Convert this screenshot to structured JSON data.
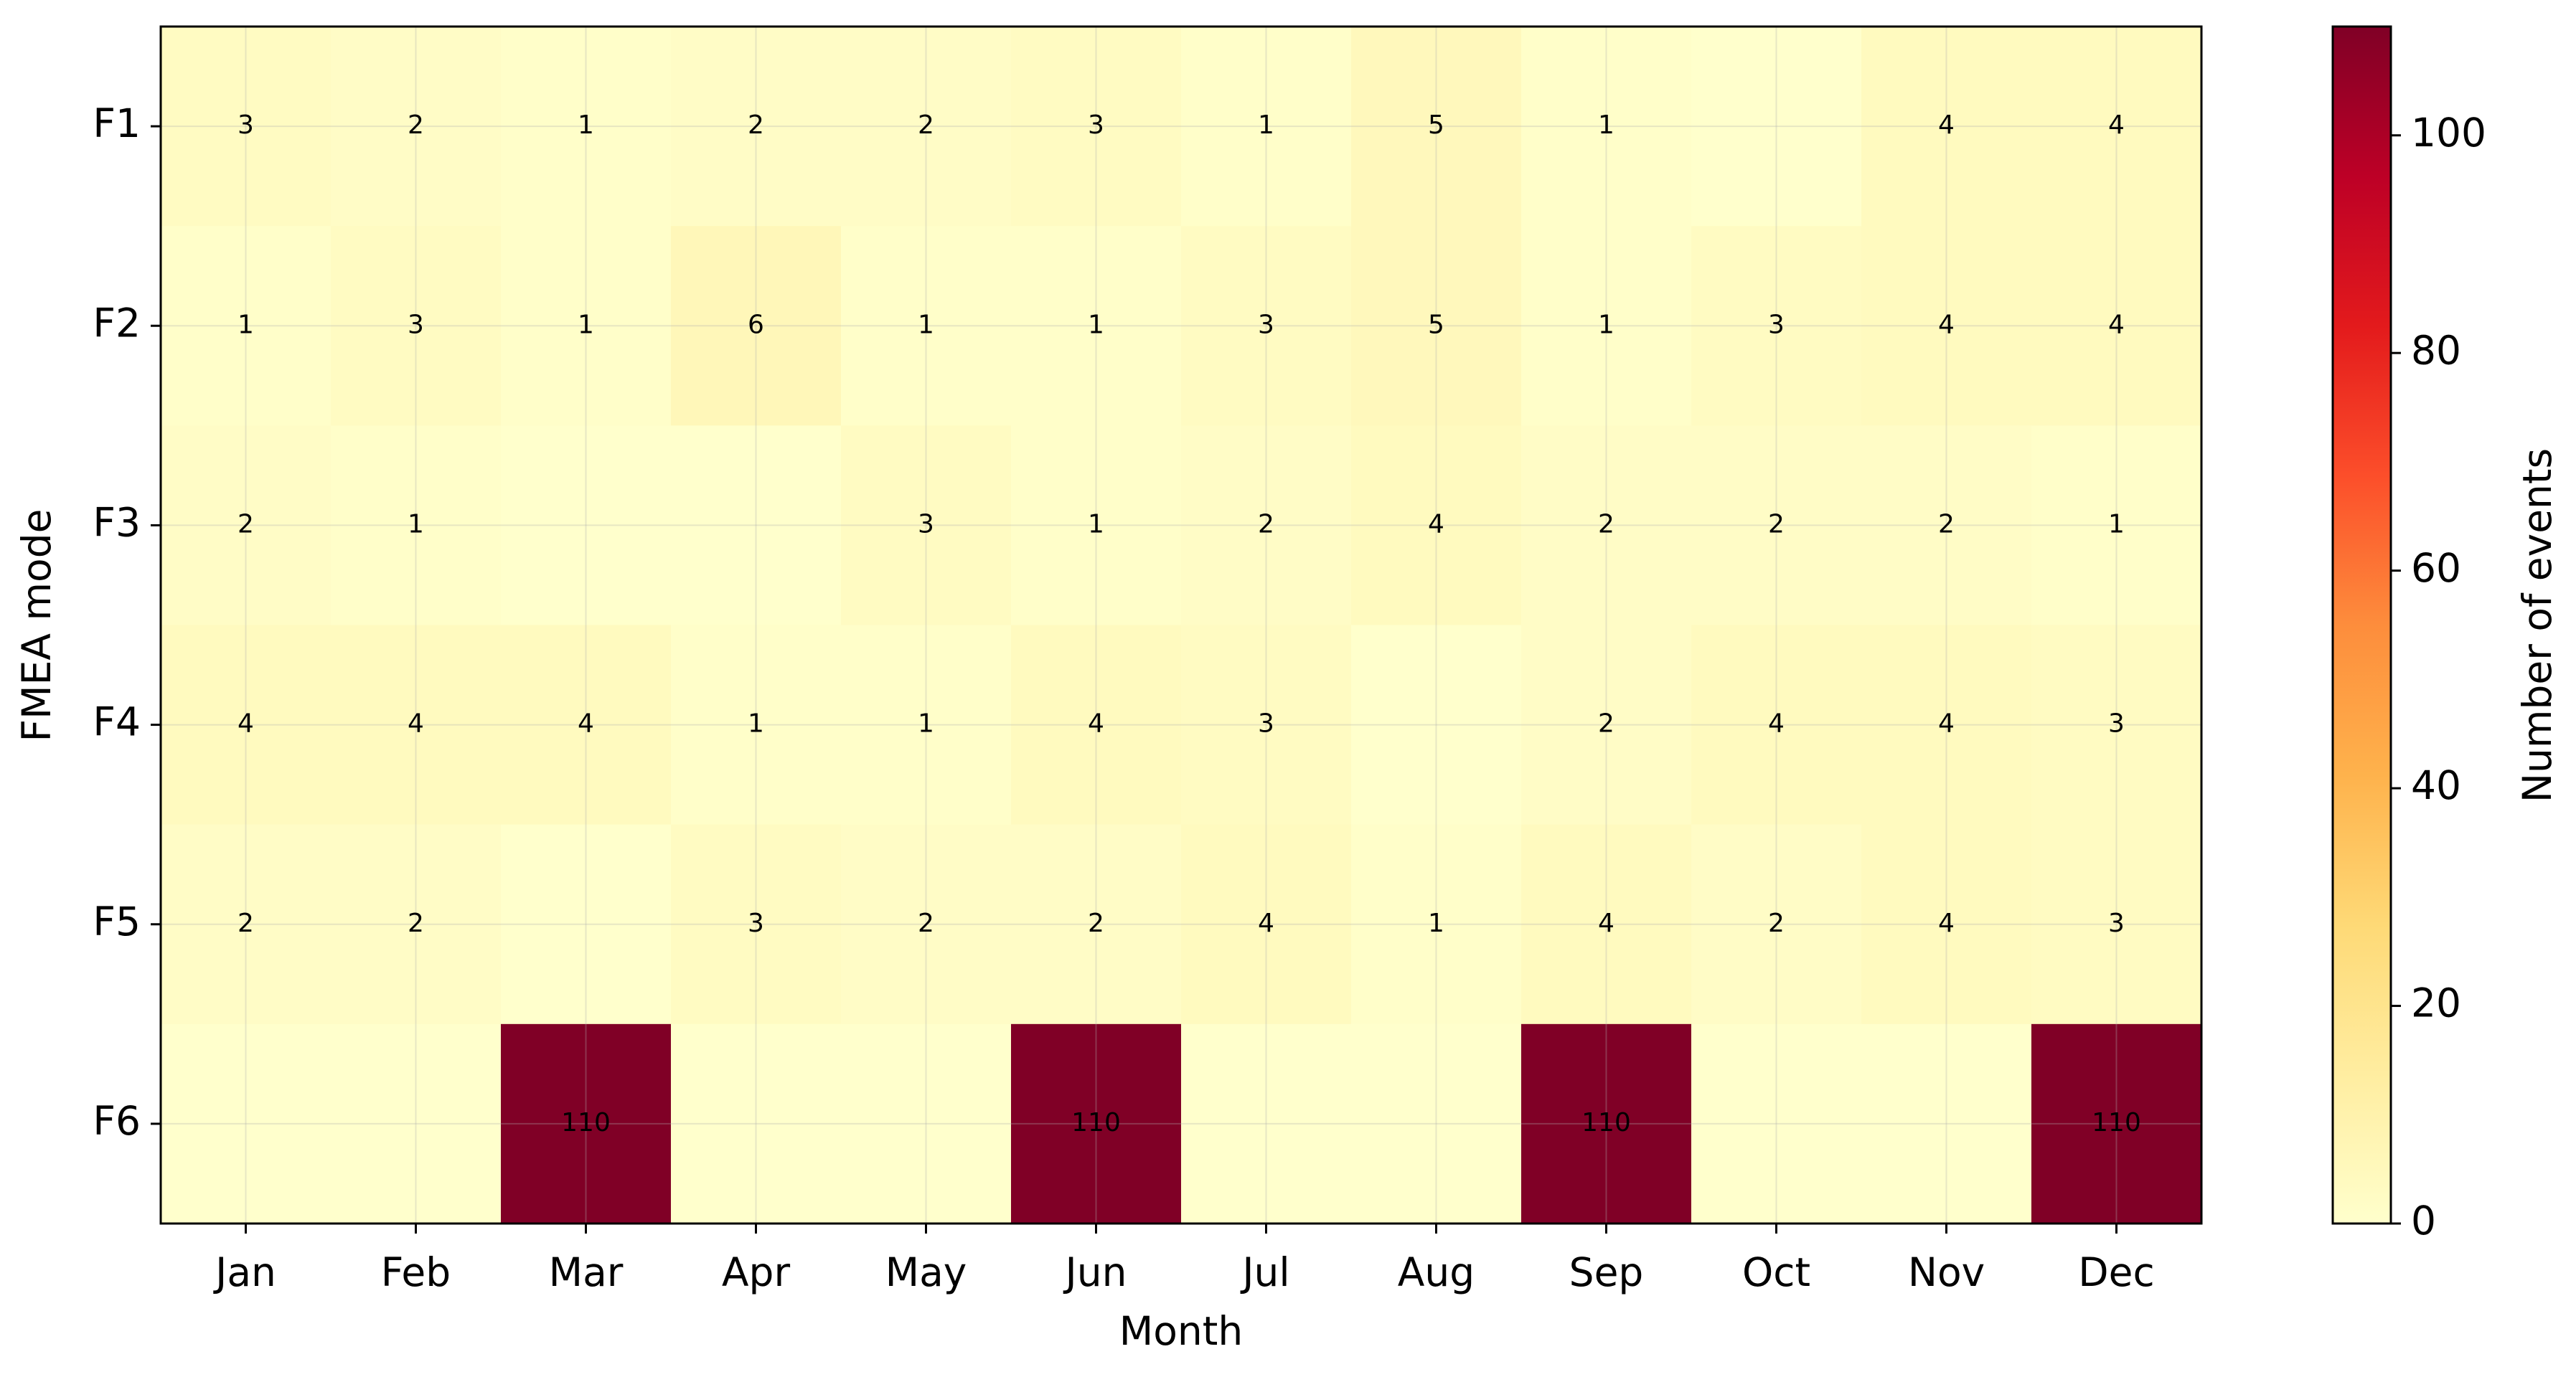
{
  "chart_data": {
    "type": "heatmap",
    "x_label": "Month",
    "y_label": "FMEA mode",
    "colorbar_label": "Number of events",
    "categories": [
      "Jan",
      "Feb",
      "Mar",
      "Apr",
      "May",
      "Jun",
      "Jul",
      "Aug",
      "Sep",
      "Oct",
      "Nov",
      "Dec"
    ],
    "rows": [
      "F1",
      "F2",
      "F3",
      "F4",
      "F5",
      "F6"
    ],
    "values": [
      [
        3,
        2,
        1,
        2,
        2,
        3,
        1,
        5,
        1,
        0,
        4,
        4
      ],
      [
        1,
        3,
        1,
        6,
        1,
        1,
        3,
        5,
        1,
        3,
        4,
        4
      ],
      [
        2,
        1,
        0,
        0,
        3,
        1,
        2,
        4,
        2,
        2,
        2,
        1
      ],
      [
        4,
        4,
        4,
        1,
        1,
        4,
        3,
        0,
        2,
        4,
        4,
        3
      ],
      [
        2,
        2,
        0,
        3,
        2,
        2,
        4,
        1,
        4,
        2,
        4,
        3
      ],
      [
        0,
        0,
        110,
        0,
        0,
        110,
        0,
        0,
        110,
        0,
        0,
        110
      ]
    ],
    "clim": [
      0,
      110
    ],
    "cticks": [
      0,
      20,
      40,
      60,
      80,
      100
    ],
    "colormap": [
      "#ffffcc",
      "#ffeda0",
      "#fed976",
      "#feb24c",
      "#fd8d3c",
      "#fc4e2a",
      "#e31a1c",
      "#bd0026",
      "#800026"
    ],
    "grid": true
  }
}
